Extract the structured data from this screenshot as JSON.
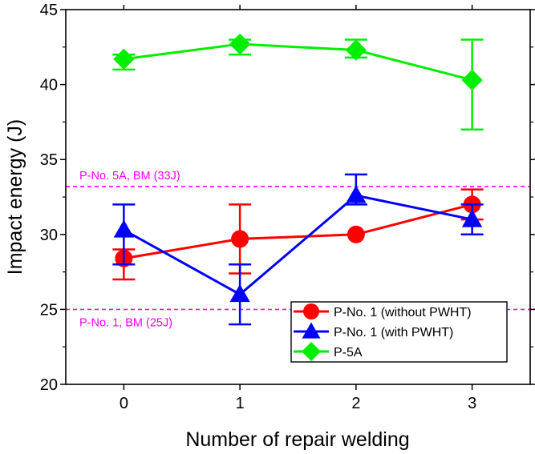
{
  "chart_data": {
    "type": "line",
    "title": "",
    "xlabel": "Number of repair welding",
    "ylabel": "Impact energy (J)",
    "xlim": [
      -0.5,
      3.5
    ],
    "ylim": [
      20,
      45
    ],
    "x": [
      0,
      1,
      2,
      3
    ],
    "x_tick_labels": [
      "0",
      "1",
      "2",
      "3"
    ],
    "y_ticks": [
      20,
      25,
      30,
      35,
      40,
      45
    ],
    "y_tick_labels": [
      "20",
      "25",
      "30",
      "35",
      "40",
      "45"
    ],
    "grid": false,
    "legend_position": "bottom-right",
    "series": [
      {
        "name": "P-No. 1 (without PWHT)",
        "color": "#ff0000",
        "marker": "circle",
        "values": [
          28.4,
          29.7,
          30.0,
          32.0
        ],
        "err_low": [
          27.0,
          27.4,
          30.0,
          31.0
        ],
        "err_high": [
          29.0,
          32.0,
          30.0,
          33.0
        ]
      },
      {
        "name": "P-No. 1 (with PWHT)",
        "color": "#0000ff",
        "marker": "triangle",
        "values": [
          30.3,
          26.0,
          32.6,
          31.0
        ],
        "err_low": [
          28.0,
          24.0,
          32.0,
          30.0
        ],
        "err_high": [
          32.0,
          28.0,
          34.0,
          32.0
        ]
      },
      {
        "name": "P-5A",
        "color": "#00ee00",
        "marker": "diamond",
        "values": [
          41.7,
          42.7,
          42.3,
          40.3
        ],
        "err_low": [
          41.0,
          42.0,
          41.8,
          37.0
        ],
        "err_high": [
          42.0,
          43.0,
          43.0,
          43.0
        ]
      }
    ],
    "reference_lines": [
      {
        "label": "P-No. 5A, BM (33J)",
        "y": 33.2,
        "color": "#ff00ff",
        "label_side": "above"
      },
      {
        "label": "P-No. 1, BM (25J)",
        "y": 25.0,
        "color": "#ff00ff",
        "label_side": "below"
      }
    ]
  }
}
